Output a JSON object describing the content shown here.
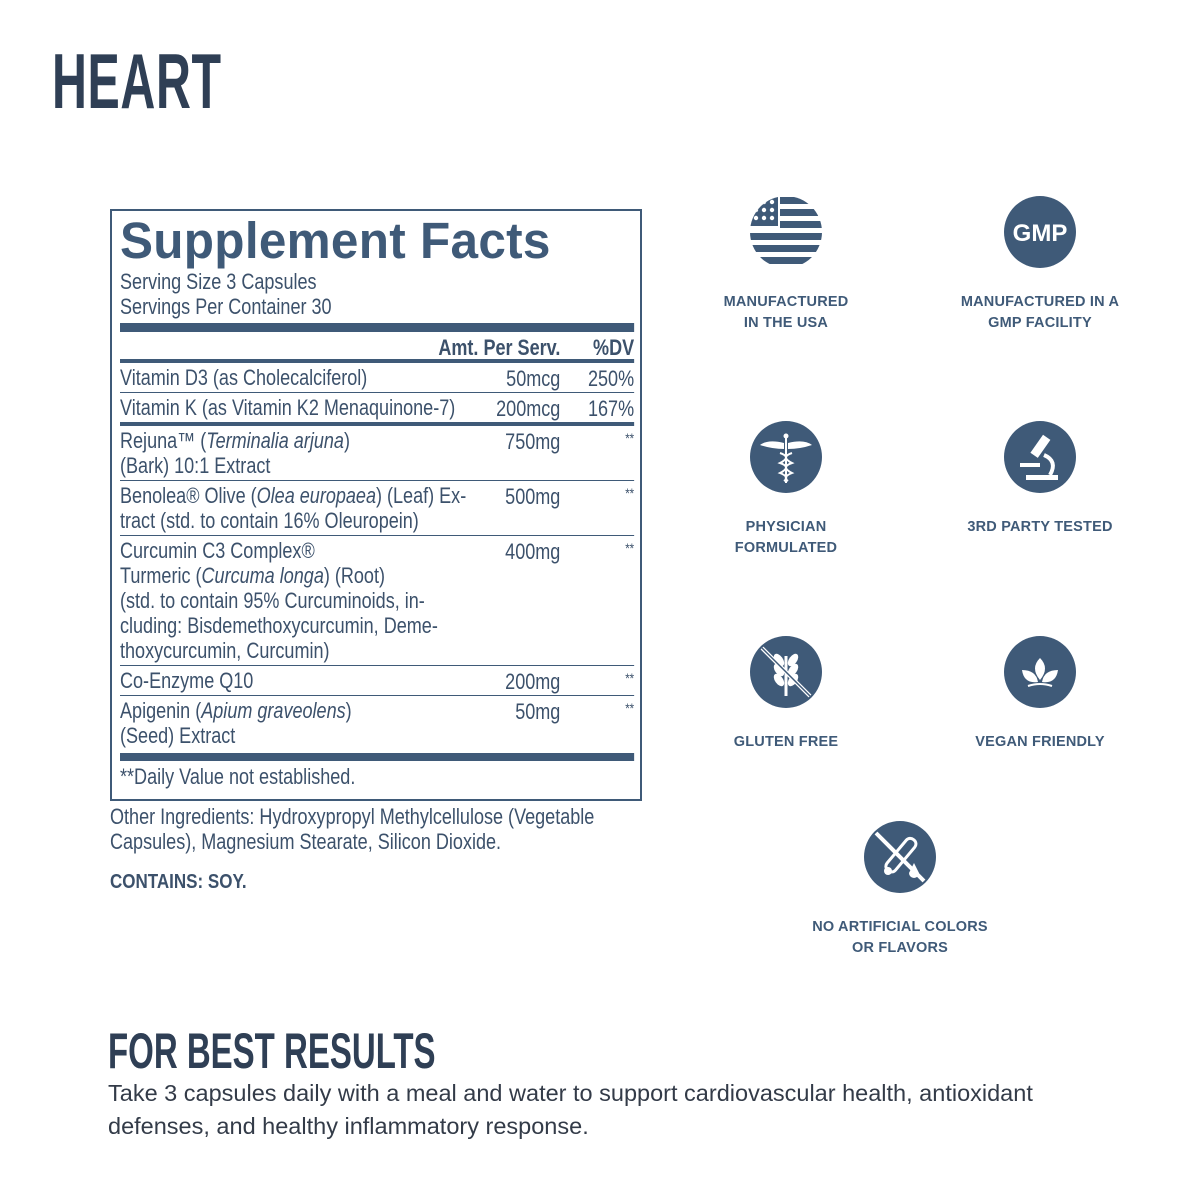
{
  "title": "HEART",
  "facts": {
    "title": "Supplement Facts",
    "serving_size": "Serving Size 3 Capsules",
    "servings_per_container": "Servings Per Container 30",
    "header_amount": "Amt. Per Serv.",
    "header_dv": "%DV",
    "rows": [
      {
        "lines": [
          [
            {
              "t": "Vitamin D3 (as Cholecalciferol)"
            }
          ]
        ],
        "amount": "50mcg",
        "dv": "250%",
        "sep": "thin"
      },
      {
        "lines": [
          [
            {
              "t": "Vitamin K (as Vitamin K2 Menaquinone-7)"
            }
          ]
        ],
        "amount": "200mcg",
        "dv": "167%",
        "sep": "thick"
      },
      {
        "lines": [
          [
            {
              "t": "Rejuna™ ("
            },
            {
              "t": "Terminalia arjuna",
              "i": true
            },
            {
              "t": ")"
            }
          ],
          [
            {
              "t": "(Bark) 10:1 Extract"
            }
          ]
        ],
        "amount": "750mg",
        "dv": "**",
        "sep": "thin"
      },
      {
        "lines": [
          [
            {
              "t": "Benolea® Olive ("
            },
            {
              "t": "Olea europaea",
              "i": true
            },
            {
              "t": ") (Leaf) Ex-"
            }
          ],
          [
            {
              "t": "tract (std. to contain 16% Oleuropein)"
            }
          ]
        ],
        "amount": "500mg",
        "dv": "**",
        "sep": "thin"
      },
      {
        "lines": [
          [
            {
              "t": "Curcumin C3 Complex®"
            }
          ],
          [
            {
              "t": "Turmeric ("
            },
            {
              "t": "Curcuma longa",
              "i": true
            },
            {
              "t": ") (Root)"
            }
          ],
          [
            {
              "t": "(std. to contain 95% Curcuminoids, in-"
            }
          ],
          [
            {
              "t": "cluding: Bisdemethoxycurcumin, Deme-"
            }
          ],
          [
            {
              "t": "thoxycurcumin, Curcumin)"
            }
          ]
        ],
        "amount": "400mg",
        "dv": "**",
        "sep": "thin"
      },
      {
        "lines": [
          [
            {
              "t": "Co-Enzyme Q10"
            }
          ]
        ],
        "amount": "200mg",
        "dv": "**",
        "sep": "thin"
      },
      {
        "lines": [
          [
            {
              "t": "Apigenin ("
            },
            {
              "t": "Apium graveolens",
              "i": true
            },
            {
              "t": ")"
            }
          ],
          [
            {
              "t": "(Seed) Extract"
            }
          ]
        ],
        "amount": "50mg",
        "dv": "**",
        "sep": "none"
      }
    ],
    "footnote": "**Daily Value not established."
  },
  "other_ingredients_1": "Other Ingredients: Hydroxypropyl Methylcellulose (Vegetable",
  "other_ingredients_2": "Capsules), Magnesium Stearate, Silicon Dioxide.",
  "contains": "CONTAINS: SOY.",
  "badges": [
    {
      "icon": "us-flag-icon",
      "l1": "MANUFACTURED",
      "l2": "IN THE USA"
    },
    {
      "icon": "gmp-icon",
      "l1": "MANUFACTURED IN A",
      "l2": "GMP FACILITY",
      "gmp": "GMP"
    },
    {
      "icon": "caduceus-icon",
      "l1": "PHYSICIAN",
      "l2": "FORMULATED"
    },
    {
      "icon": "microscope-icon",
      "l1": "3RD PARTY TESTED",
      "l2": ""
    },
    {
      "icon": "gluten-free-icon",
      "l1": "GLUTEN FREE",
      "l2": ""
    },
    {
      "icon": "vegan-leaf-icon",
      "l1": "VEGAN FRIENDLY",
      "l2": ""
    },
    {
      "icon": "no-artificial-icon",
      "l1": "NO ARTIFICIAL COLORS",
      "l2": "OR FLAVORS"
    }
  ],
  "best_results": {
    "heading": "FOR BEST RESULTS",
    "text": "Take 3 capsules daily with a meal and water to support cardiovascular health, antioxidant defenses, and healthy inflammatory response."
  },
  "colors": {
    "brand": "#3f5a78",
    "title": "#2f3f55"
  }
}
